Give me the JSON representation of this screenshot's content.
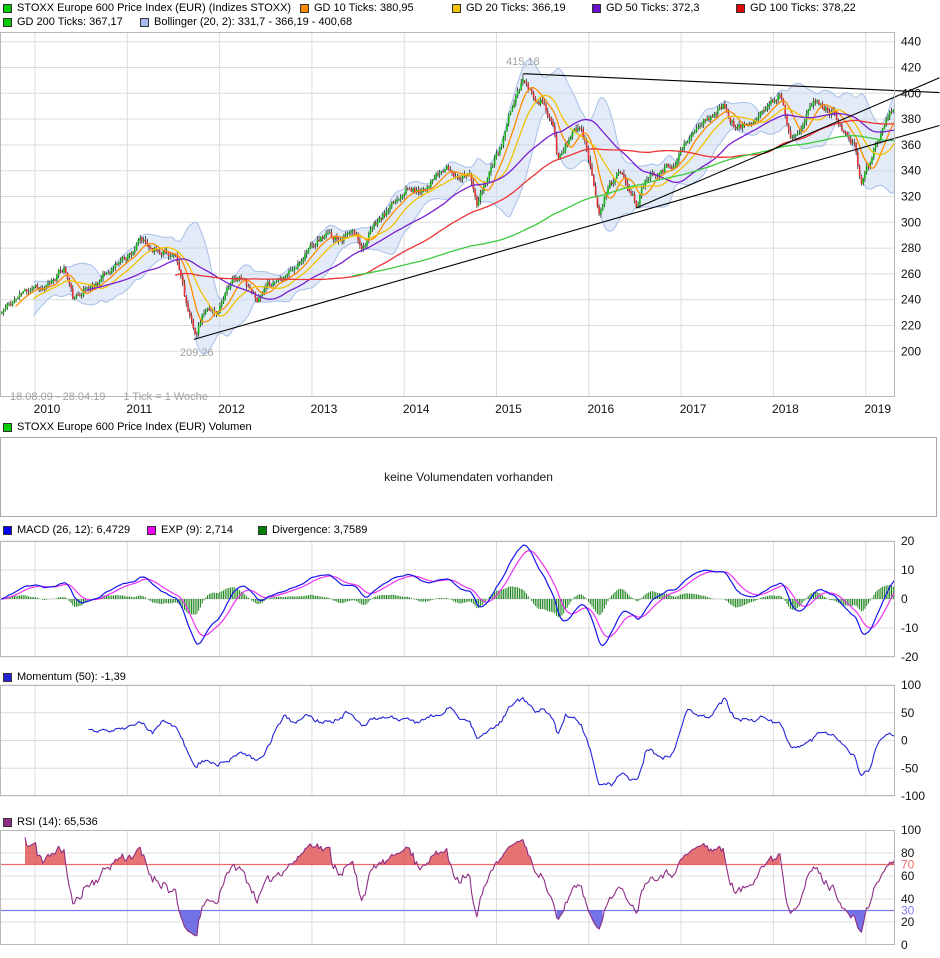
{
  "colors": {
    "price_up": "#0cb40c",
    "price_down": "#e03030",
    "wick": "#111111",
    "gd10": "#ff8c00",
    "gd20": "#f2c200",
    "gd50": "#7a1fd1",
    "gd100": "#ef3333",
    "gd200": "#3ccc3c",
    "bollinger_fill": "#c7d7f2",
    "bollinger_line": "#a6bfe8",
    "trendline": "#000000",
    "macd_line": "#1515e8",
    "macd_signal": "#f030f0",
    "macd_hist": "#168016",
    "momentum_line": "#2525d8",
    "rsi_line": "#8f2d85",
    "rsi_upper_line": "#ef6a6a",
    "rsi_lower_line": "#7d7df0",
    "grid": "#dcdcdc",
    "panel_border": "#b8b8b8",
    "axis_text": "#111111",
    "muted_text": "#a2a2a2"
  },
  "legends": {
    "price_row1": [
      {
        "label": "STOXX Europe 600 Price Index (EUR) (Indizes STOXX)",
        "color": "#00cc00"
      },
      {
        "label": "GD 10 Ticks: 380,95",
        "color": "#ff8800"
      },
      {
        "label": "GD 20 Ticks: 366,19",
        "color": "#f2c200"
      },
      {
        "label": "GD 50 Ticks: 372,3",
        "color": "#6a11cc"
      },
      {
        "label": "GD 100 Ticks: 378,22",
        "color": "#dd0808"
      }
    ],
    "price_row2": [
      {
        "label": "GD 200 Ticks: 367,17",
        "color": "#00cc00"
      },
      {
        "label": "Bollinger (20, 2): 331,7 - 366,19 - 400,68",
        "color": "#aabbee"
      }
    ],
    "volume": [
      {
        "label": "STOXX Europe 600 Price Index (EUR) Volumen",
        "color": "#00cc00"
      }
    ],
    "macd": [
      {
        "label": "MACD (26, 12): 6,4729",
        "color": "#0000f0"
      },
      {
        "label": "EXP (9): 2,714",
        "color": "#f000f0"
      },
      {
        "label": "Divergence: 3,7589",
        "color": "#008000"
      }
    ],
    "momentum": [
      {
        "label": "Momentum (50): -1,39",
        "color": "#2525d8"
      }
    ],
    "rsi": [
      {
        "label": "RSI (14): 65,536",
        "color": "#8f2d85"
      }
    ]
  },
  "volume_panel": {
    "message": "keine Volumendaten vorhanden"
  },
  "chart_data": {
    "type": "multi-panel-financial",
    "title": "STOXX Europe 600 Price Index (EUR)",
    "x_axis": {
      "years": [
        2010,
        2011,
        2012,
        2013,
        2014,
        2015,
        2016,
        2017,
        2018,
        2019
      ],
      "range_label": "18.08.09 - 28.04.19",
      "tick_note": "1 Tick = 1 Woche"
    },
    "synth": {
      "t_start": 2009.6227,
      "t_end": 2019.318,
      "weeks": 506,
      "seed": 11,
      "noise_amp": 2.6,
      "wick_amp": 2.8
    },
    "price_panel": {
      "type": "candlestick",
      "ylim": [
        164.6,
        447.5
      ],
      "y_ticks": [
        440,
        420,
        400,
        380,
        360,
        340,
        320,
        300,
        280,
        260,
        240,
        220,
        200
      ],
      "overlays": [
        {
          "name": "GD 10",
          "period": 10,
          "colorKey": "gd10"
        },
        {
          "name": "GD 20",
          "period": 20,
          "colorKey": "gd20"
        },
        {
          "name": "GD 50",
          "period": 50,
          "colorKey": "gd50"
        },
        {
          "name": "GD 100",
          "period": 100,
          "colorKey": "gd100"
        },
        {
          "name": "GD 200",
          "period": 200,
          "colorKey": "gd200"
        }
      ],
      "bollinger": {
        "period": 20,
        "mult": 2
      },
      "annotations": {
        "high": {
          "t": 2015.29,
          "price": 415.18,
          "label": "415,18"
        },
        "low": {
          "t": 2011.75,
          "price": 209.26,
          "label": "209,26"
        }
      },
      "trendlines": [
        {
          "t1": 2015.29,
          "v1": 415.18,
          "t2": 2019.8,
          "v2": 400.5
        },
        {
          "t1": 2011.72,
          "v1": 209.26,
          "t2": 2019.8,
          "v2": 375.0
        },
        {
          "t1": 2016.51,
          "v1": 311.0,
          "t2": 2019.8,
          "v2": 412.0
        }
      ],
      "price_keypoints": [
        [
          2009.63,
          229
        ],
        [
          2009.75,
          238
        ],
        [
          2009.88,
          246
        ],
        [
          2010.0,
          252
        ],
        [
          2010.1,
          247
        ],
        [
          2010.22,
          258
        ],
        [
          2010.32,
          265
        ],
        [
          2010.42,
          239
        ],
        [
          2010.52,
          248
        ],
        [
          2010.65,
          252
        ],
        [
          2010.8,
          262
        ],
        [
          2010.92,
          270
        ],
        [
          2011.05,
          277
        ],
        [
          2011.14,
          286
        ],
        [
          2011.25,
          280
        ],
        [
          2011.4,
          278
        ],
        [
          2011.52,
          272
        ],
        [
          2011.6,
          252
        ],
        [
          2011.67,
          226
        ],
        [
          2011.75,
          213
        ],
        [
          2011.82,
          228
        ],
        [
          2011.9,
          234
        ],
        [
          2011.97,
          228
        ],
        [
          2012.08,
          250
        ],
        [
          2012.2,
          257
        ],
        [
          2012.3,
          252
        ],
        [
          2012.42,
          240
        ],
        [
          2012.55,
          252
        ],
        [
          2012.7,
          260
        ],
        [
          2012.85,
          266
        ],
        [
          2013.0,
          284
        ],
        [
          2013.15,
          290
        ],
        [
          2013.3,
          288
        ],
        [
          2013.45,
          292
        ],
        [
          2013.55,
          281
        ],
        [
          2013.7,
          300
        ],
        [
          2013.85,
          310
        ],
        [
          2014.0,
          326
        ],
        [
          2014.15,
          324
        ],
        [
          2014.3,
          332
        ],
        [
          2014.45,
          342
        ],
        [
          2014.58,
          336
        ],
        [
          2014.7,
          340
        ],
        [
          2014.79,
          312
        ],
        [
          2014.92,
          340
        ],
        [
          2015.05,
          358
        ],
        [
          2015.18,
          392
        ],
        [
          2015.29,
          412
        ],
        [
          2015.38,
          398
        ],
        [
          2015.5,
          394
        ],
        [
          2015.62,
          372
        ],
        [
          2015.66,
          346
        ],
        [
          2015.74,
          358
        ],
        [
          2015.84,
          372
        ],
        [
          2015.92,
          374
        ],
        [
          2016.0,
          350
        ],
        [
          2016.12,
          306
        ],
        [
          2016.22,
          330
        ],
        [
          2016.33,
          338
        ],
        [
          2016.45,
          326
        ],
        [
          2016.52,
          314
        ],
        [
          2016.62,
          336
        ],
        [
          2016.76,
          341
        ],
        [
          2016.9,
          344
        ],
        [
          2017.05,
          361
        ],
        [
          2017.2,
          375
        ],
        [
          2017.35,
          384
        ],
        [
          2017.46,
          390
        ],
        [
          2017.6,
          372
        ],
        [
          2017.72,
          376
        ],
        [
          2017.85,
          386
        ],
        [
          2017.97,
          391
        ],
        [
          2018.08,
          401
        ],
        [
          2018.18,
          367
        ],
        [
          2018.32,
          377
        ],
        [
          2018.44,
          394
        ],
        [
          2018.56,
          388
        ],
        [
          2018.68,
          383
        ],
        [
          2018.8,
          366
        ],
        [
          2018.88,
          358
        ],
        [
          2018.95,
          331
        ],
        [
          2019.02,
          342
        ],
        [
          2019.1,
          358
        ],
        [
          2019.19,
          373
        ],
        [
          2019.28,
          386
        ],
        [
          2019.318,
          391
        ]
      ]
    },
    "macd_panel": {
      "type": "line+histogram",
      "params": {
        "fast": 12,
        "slow": 26,
        "signal": 9
      },
      "ylim": [
        -20,
        20
      ],
      "y_ticks": [
        20,
        10,
        0,
        -10,
        -20
      ]
    },
    "momentum_panel": {
      "type": "line",
      "params": {
        "period": 50
      },
      "ylim": [
        -100,
        100
      ],
      "y_ticks": [
        100,
        50,
        0,
        -50,
        -100
      ]
    },
    "rsi_panel": {
      "type": "line",
      "params": {
        "period": 14
      },
      "ylim": [
        0,
        100
      ],
      "y_ticks": [
        100,
        80,
        70,
        60,
        40,
        30,
        20,
        0
      ],
      "levels": {
        "overbought": 70,
        "oversold": 30
      }
    }
  }
}
